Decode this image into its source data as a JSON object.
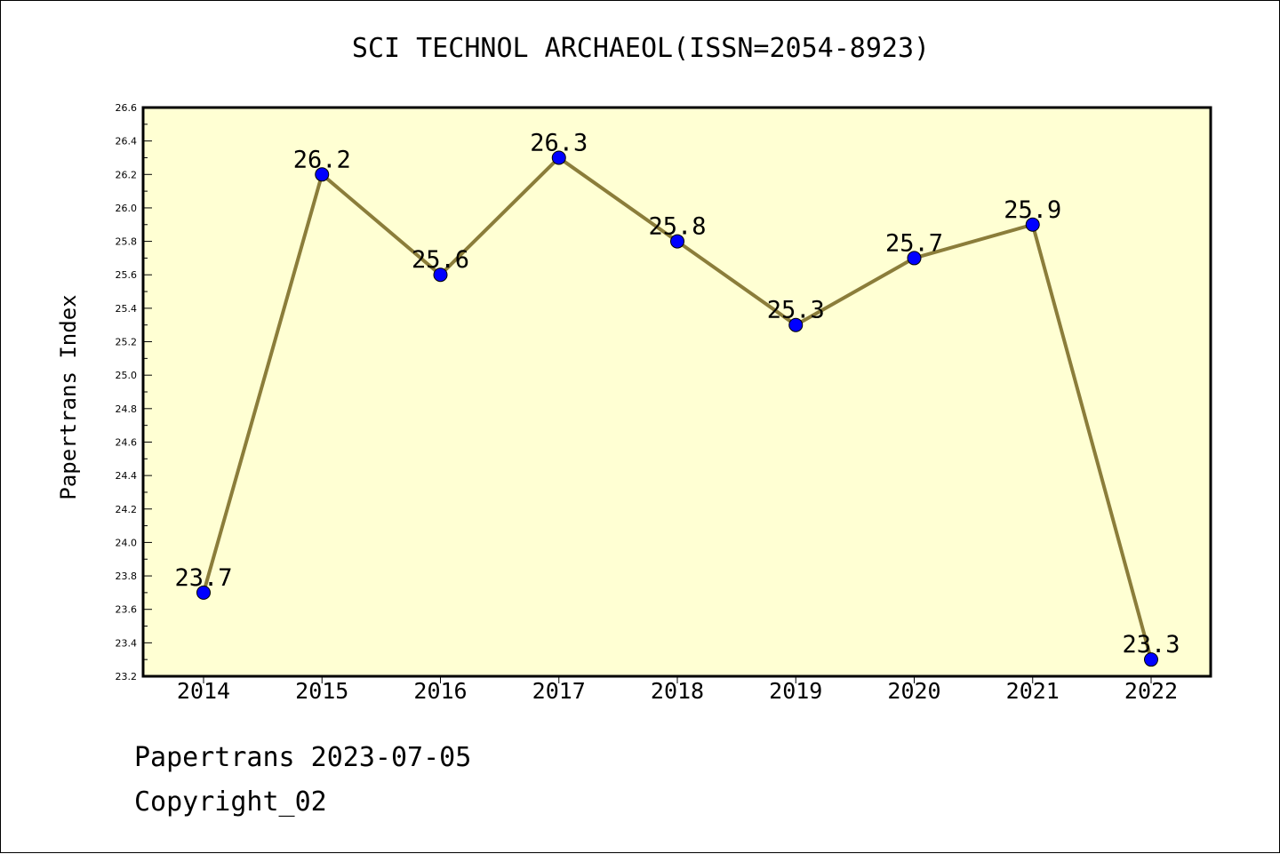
{
  "footer": {
    "line1": "Papertrans 2023-07-05",
    "line2": "Copyright_02"
  },
  "colors": {
    "plot_background": "#ffffd3",
    "line": "#8b7d3a",
    "marker": "#0000ff",
    "axis": "#000000"
  },
  "chart_data": {
    "type": "line",
    "title": "SCI TECHNOL ARCHAEOL(ISSN=2054-8923)",
    "xlabel": "",
    "ylabel": "Papertrans Index",
    "categories": [
      "2014",
      "2015",
      "2016",
      "2017",
      "2018",
      "2019",
      "2020",
      "2021",
      "2022"
    ],
    "series": [
      {
        "values": [
          23.7,
          26.2,
          25.6,
          26.3,
          25.8,
          25.3,
          25.7,
          25.9,
          23.3
        ],
        "data_labels": [
          "23.7",
          "26.2",
          "25.6",
          "26.3",
          "25.8",
          "25.3",
          "25.7",
          "25.9",
          "23.3"
        ]
      }
    ],
    "ylim": [
      23.2,
      26.6
    ],
    "yticks": [
      "23.2",
      "23.4",
      "23.6",
      "23.8",
      "24.0",
      "24.2",
      "24.4",
      "24.6",
      "24.8",
      "25.0",
      "25.2",
      "25.4",
      "25.6",
      "25.8",
      "26.0",
      "26.2",
      "26.4",
      "26.6"
    ],
    "grid": false,
    "legend": "none"
  }
}
